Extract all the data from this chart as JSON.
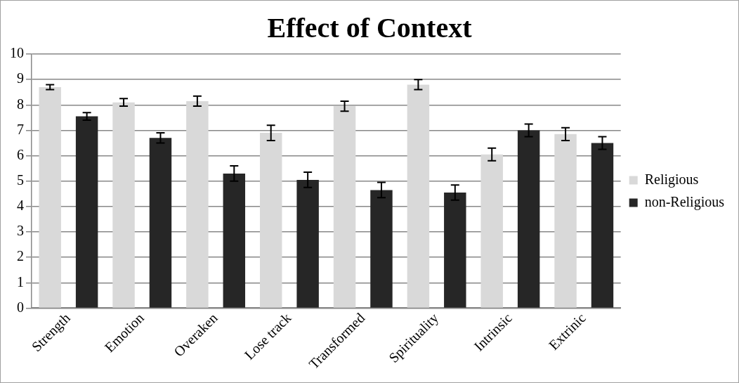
{
  "chart_data": {
    "type": "bar",
    "title": "Effect of Context",
    "categories": [
      "Strength",
      "Emotion",
      "Overaken",
      "Lose track",
      "Transformed",
      "Spirituality",
      "Intrinsic",
      "Extrinic"
    ],
    "series": [
      {
        "name": "Religious",
        "color": "#d9d9d9",
        "values": [
          8.7,
          8.1,
          8.15,
          6.9,
          7.95,
          8.8,
          6.05,
          6.85
        ],
        "errors": [
          0.1,
          0.15,
          0.2,
          0.3,
          0.2,
          0.2,
          0.25,
          0.25
        ]
      },
      {
        "name": "non-Religious",
        "color": "#262626",
        "values": [
          7.55,
          6.7,
          5.3,
          5.05,
          4.65,
          4.55,
          7.0,
          6.5
        ],
        "errors": [
          0.15,
          0.2,
          0.3,
          0.3,
          0.3,
          0.3,
          0.25,
          0.25
        ]
      }
    ],
    "ylim": [
      0,
      10
    ],
    "yticks": [
      0,
      1,
      2,
      3,
      4,
      5,
      6,
      7,
      8,
      9,
      10
    ],
    "grid": "y",
    "legend": "right"
  }
}
